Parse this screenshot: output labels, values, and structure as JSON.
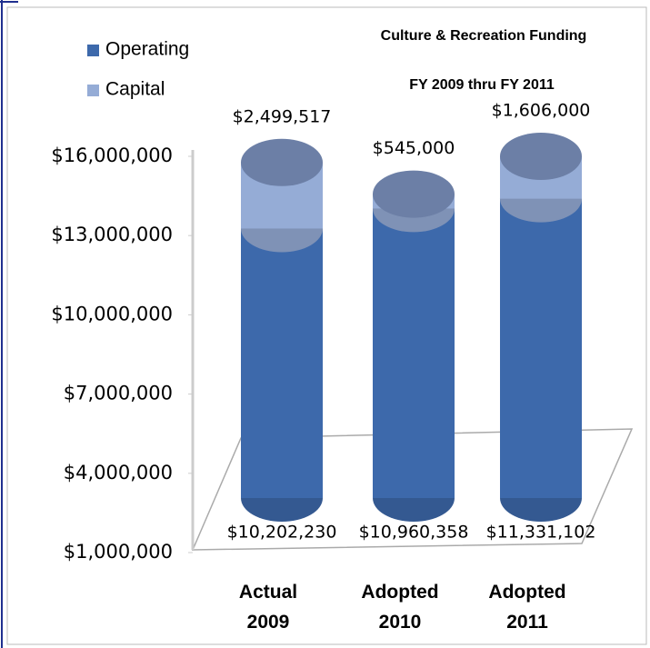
{
  "chart_data": {
    "type": "bar",
    "stacked": true,
    "title": "Culture & Recreation Funding",
    "subtitle": "FY 2009 thru FY 2011",
    "categories": [
      "Actual 2009",
      "Adopted 2010",
      "Adopted 2011"
    ],
    "series": [
      {
        "name": "Operating",
        "color": "#3d69ab",
        "values": [
          10202230,
          10960358,
          11331102
        ],
        "value_labels": [
          "$10,202,230",
          "$10,960,358",
          "$11,331,102"
        ]
      },
      {
        "name": "Capital",
        "color": "#95acd6",
        "values": [
          2499517,
          545000,
          1606000
        ],
        "value_labels": [
          "$2,499,517",
          "$545,000",
          "$1,606,000"
        ]
      }
    ],
    "ylim": [
      1000000,
      16000000
    ],
    "yticks": [
      {
        "value": 1000000,
        "label": "$1,000,000"
      },
      {
        "value": 4000000,
        "label": "$4,000,000"
      },
      {
        "value": 7000000,
        "label": "$7,000,000"
      },
      {
        "value": 10000000,
        "label": "$10,000,000"
      },
      {
        "value": 13000000,
        "label": "$13,000,000"
      },
      {
        "value": 16000000,
        "label": "$16,000,000"
      }
    ],
    "legend": "top-left"
  }
}
